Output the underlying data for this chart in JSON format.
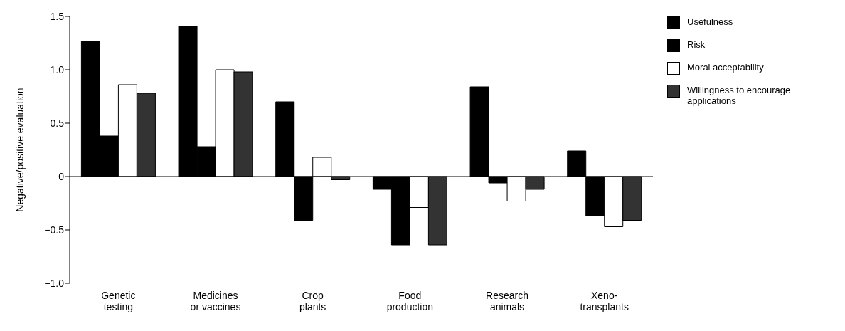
{
  "chart_data": {
    "type": "bar",
    "ylabel": "Negative/positive evaluation",
    "categories": [
      "Genetic\ntesting",
      "Medicines\nor vaccines",
      "Crop\nplants",
      "Food\nproduction",
      "Research\nanimals",
      "Xeno-\ntransplants"
    ],
    "series": [
      {
        "name": "Usefulness",
        "color": "#000000",
        "values": [
          1.27,
          1.41,
          0.7,
          -0.12,
          0.84,
          0.24
        ]
      },
      {
        "name": "Risk",
        "color": "#000000",
        "values": [
          0.38,
          0.28,
          -0.41,
          -0.64,
          -0.06,
          -0.37
        ]
      },
      {
        "name": "Moral acceptability",
        "color": "#ffffff",
        "values": [
          0.86,
          1.0,
          0.18,
          -0.29,
          -0.23,
          -0.47
        ]
      },
      {
        "name": "Willingness to encourage applications",
        "color": "#333333",
        "values": [
          0.78,
          0.98,
          -0.03,
          -0.64,
          -0.12,
          -0.41
        ]
      }
    ],
    "ylim": [
      -1.0,
      1.5
    ],
    "yticks": [
      {
        "value": -1.0,
        "label": "−1.0"
      },
      {
        "value": -0.5,
        "label": "−0.5"
      },
      0,
      {
        "value": 0.5,
        "label": "0.5"
      },
      {
        "value": 1.0,
        "label": "1.0"
      },
      {
        "value": 1.5,
        "label": "1.5"
      }
    ],
    "ref_lines": [
      {
        "axis": "y",
        "value": 0,
        "color": "#000000"
      }
    ],
    "legend": "top right"
  }
}
